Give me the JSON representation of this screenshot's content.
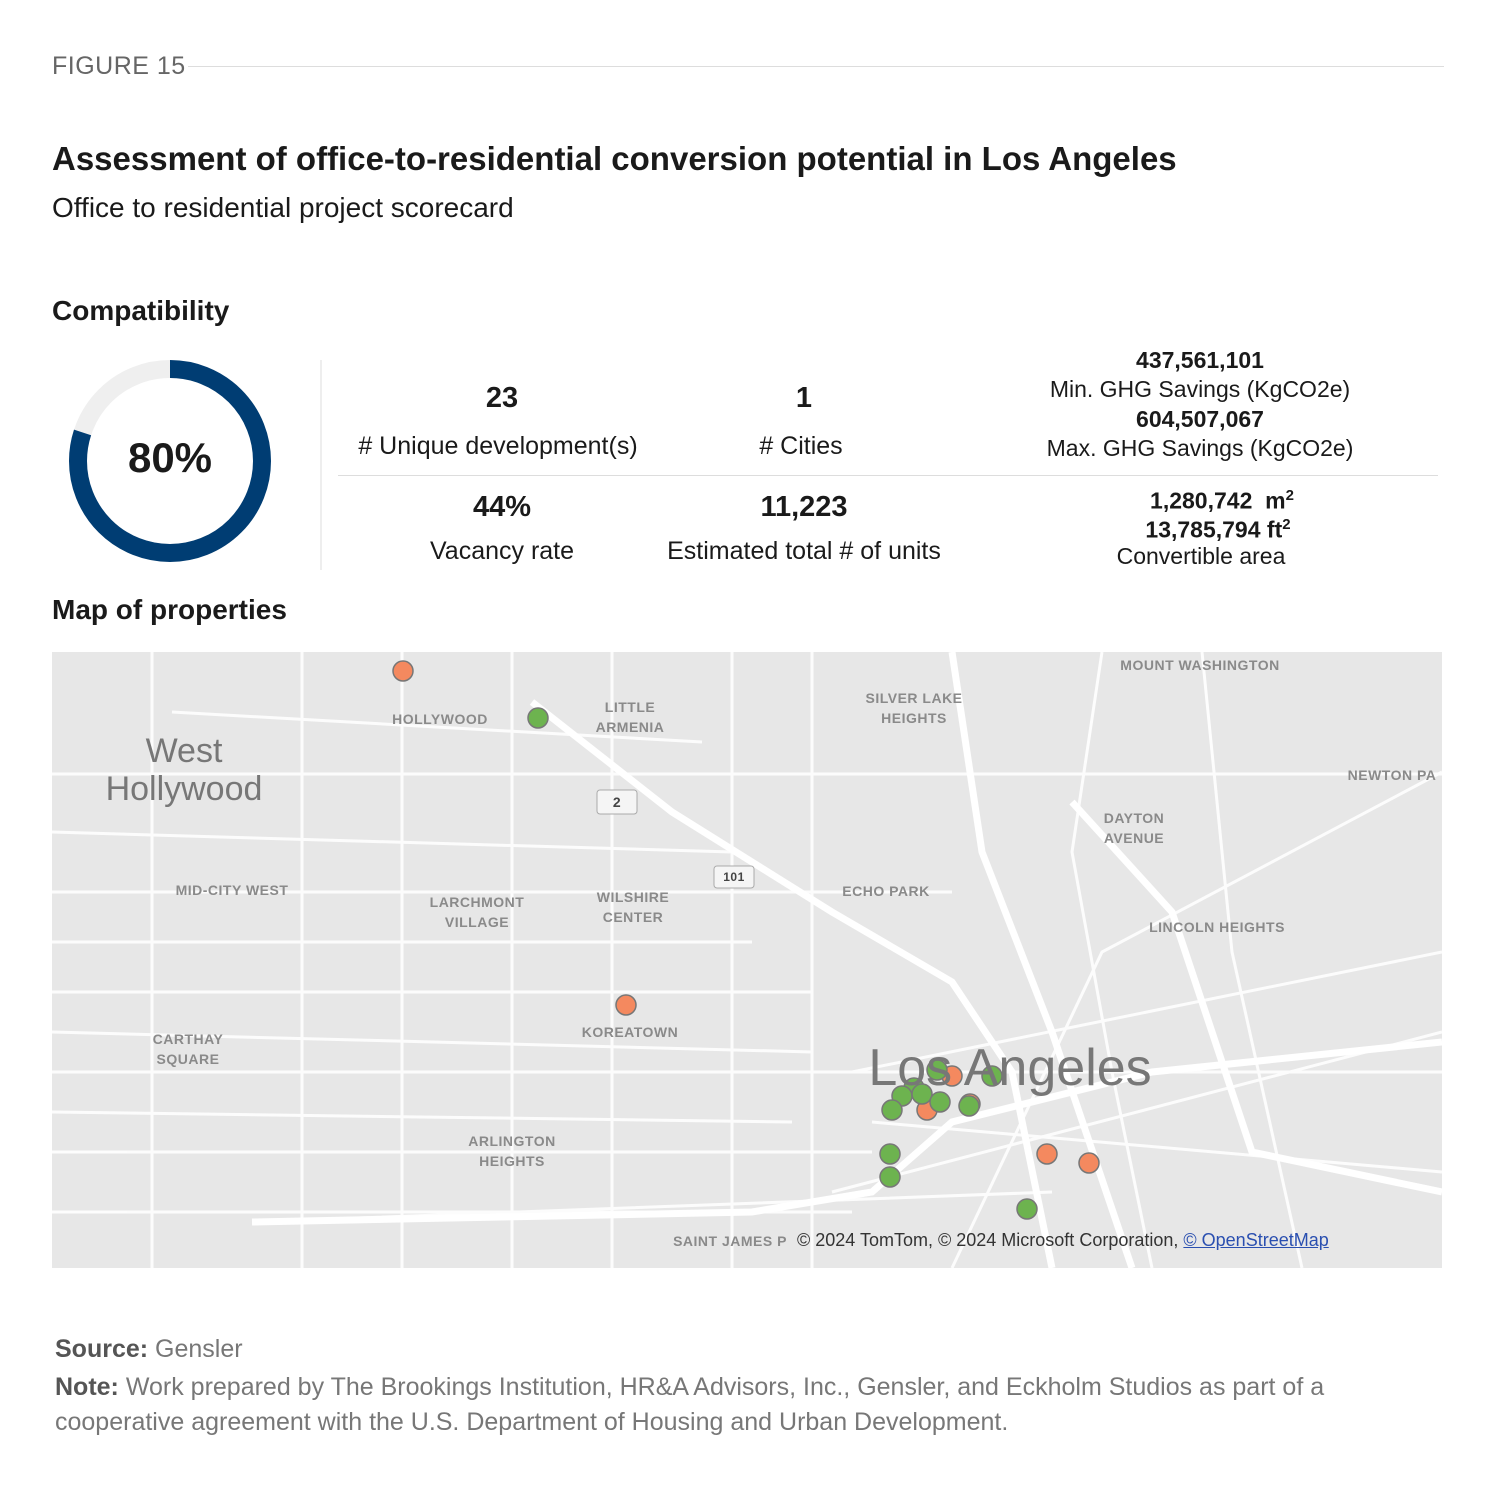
{
  "figure_label": "FIGURE 15",
  "title": "Assessment of office-to-residential conversion potential in Los Angeles",
  "subtitle": "Office to residential project scorecard",
  "compatibility": {
    "heading": "Compatibility",
    "gauge": {
      "value": 80,
      "label": "80%"
    }
  },
  "metrics": {
    "developments": {
      "value": "23",
      "label": "# Unique development(s)"
    },
    "cities": {
      "value": "1",
      "label": "# Cities"
    },
    "ghg": {
      "min_value": "437,561,101",
      "min_label": "Min. GHG Savings (KgCO2e)",
      "max_value": "604,507,067",
      "max_label": "Max. GHG Savings (KgCO2e)"
    },
    "vacancy": {
      "value": "44%",
      "label": "Vacancy rate"
    },
    "units": {
      "value": "11,223",
      "label": "Estimated total # of units"
    },
    "area": {
      "metric_value": "1,280,742",
      "metric_unit": "m",
      "imperial_value": "13,785,794",
      "imperial_unit": "ft",
      "exponent": "2",
      "label": "Convertible area"
    }
  },
  "map": {
    "heading": "Map of properties",
    "labels": [
      "HOLLYWOOD",
      "LITTLE ARMENIA",
      "West Hollywood",
      "SILVER LAKE HEIGHTS",
      "MOUNT WASHINGTON",
      "NEWTON PA",
      "DAYTON AVENUE",
      "2",
      "101",
      "MID-CITY WEST",
      "LARCHMONT VILLAGE",
      "WILSHIRE CENTER",
      "ECHO PARK",
      "LINCOLN HEIGHTS",
      "CARTHAY SQUARE",
      "KOREATOWN",
      "Los Angeles",
      "ARLINGTON HEIGHTS",
      "SAINT JAMES P"
    ],
    "attribution": "© 2024 TomTom, © 2024 Microsoft Corporation,",
    "attribution_link": "© OpenStreetMap"
  },
  "source": {
    "label": "Source:",
    "text": "Gensler"
  },
  "note": {
    "label": "Note:",
    "text": "Work prepared by The Brookings Institution, HR&A Advisors, Inc., Gensler, and Eckholm Studios as part of a cooperative agreement with the U.S. Department of Housing and Urban Development."
  }
}
